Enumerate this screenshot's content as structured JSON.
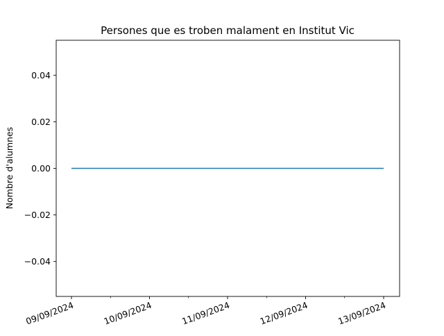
{
  "chart_data": {
    "type": "line",
    "title": "Persones que es troben malament en Institut Vic",
    "xlabel": "",
    "ylabel": "Nombre d'alumnes",
    "x": [
      "09/09/2024",
      "10/09/2024",
      "11/09/2024",
      "12/09/2024",
      "13/09/2024"
    ],
    "series": [
      {
        "values": [
          0,
          0,
          0,
          0,
          0
        ]
      }
    ],
    "ylim": [
      -0.055,
      0.055
    ],
    "y_ticks": [
      -0.04,
      -0.02,
      0.0,
      0.02,
      0.04
    ],
    "y_tick_labels": [
      "−0.04",
      "−0.02",
      "0.00",
      "0.02",
      "0.04"
    ],
    "x_tick_labels": [
      "09/09/2024",
      "10/09/2024",
      "11/09/2024",
      "12/09/2024",
      "13/09/2024"
    ],
    "grid": false,
    "line_color": "#1f77b4"
  }
}
